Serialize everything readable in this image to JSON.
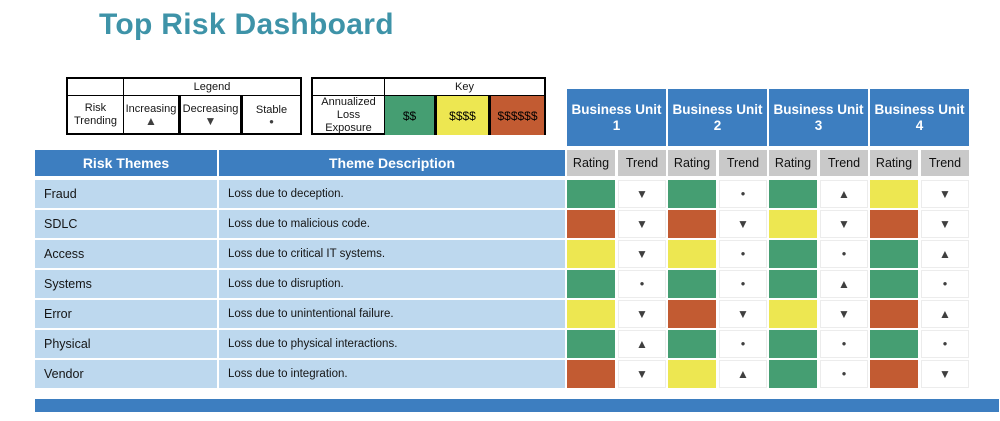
{
  "title": "Top Risk Dashboard",
  "colors": {
    "header_blue": "#3D7EC0",
    "row_blue": "#BDD8EE",
    "subheader_gray": "#C9C9C9",
    "green": "#459E72",
    "yellow": "#EDE751",
    "orange": "#C25B32",
    "title_teal": "#3E93A8",
    "glyph_gray": "#3F3F3F"
  },
  "legend": {
    "title": "Legend",
    "row_label": "Risk Trending",
    "items": [
      {
        "label": "Increasing",
        "glyph": "▲"
      },
      {
        "label": "Decreasing",
        "glyph": "▼"
      },
      {
        "label": "Stable",
        "glyph": "●"
      }
    ]
  },
  "key": {
    "title": "Key",
    "row_label": "Annualized Loss Exposure",
    "items": [
      {
        "label": "$$",
        "color": "green"
      },
      {
        "label": "$$$$",
        "color": "yellow"
      },
      {
        "label": "$$$$$$",
        "color": "orange"
      }
    ]
  },
  "business_units": [
    {
      "line1": "Business Unit",
      "line2": "1"
    },
    {
      "line1": "Business Unit",
      "line2": "2"
    },
    {
      "line1": "Business Unit",
      "line2": "3"
    },
    {
      "line1": "Business Unit",
      "line2": "4"
    }
  ],
  "subheaders": {
    "rating": "Rating",
    "trend": "Trend"
  },
  "table_headers": {
    "risk_themes": "Risk Themes",
    "theme_description": "Theme Description"
  },
  "glyphs": {
    "up": "▲",
    "down": "▼",
    "stable": "●"
  },
  "chart_data": {
    "type": "table",
    "title": "Top Risk Dashboard",
    "columns": [
      "Risk Themes",
      "Theme Description",
      "Business Unit 1 Rating",
      "Business Unit 1 Trend",
      "Business Unit 2 Rating",
      "Business Unit 2 Trend",
      "Business Unit 3 Rating",
      "Business Unit 3 Trend",
      "Business Unit 4 Rating",
      "Business Unit 4 Trend"
    ],
    "rating_legend": {
      "green": "$$",
      "yellow": "$$$$",
      "orange": "$$$$$$"
    },
    "trend_legend": {
      "up": "Increasing",
      "down": "Decreasing",
      "stable": "Stable"
    },
    "rows": [
      {
        "theme": "Fraud",
        "description": "Loss due to deception.",
        "units": [
          {
            "rating": "green",
            "trend": "down"
          },
          {
            "rating": "green",
            "trend": "stable"
          },
          {
            "rating": "green",
            "trend": "up"
          },
          {
            "rating": "yellow",
            "trend": "down"
          }
        ]
      },
      {
        "theme": "SDLC",
        "description": "Loss due to malicious code.",
        "units": [
          {
            "rating": "orange",
            "trend": "down"
          },
          {
            "rating": "orange",
            "trend": "down"
          },
          {
            "rating": "yellow",
            "trend": "down"
          },
          {
            "rating": "orange",
            "trend": "down"
          }
        ]
      },
      {
        "theme": "Access",
        "description": "Loss due to critical IT systems.",
        "units": [
          {
            "rating": "yellow",
            "trend": "down"
          },
          {
            "rating": "yellow",
            "trend": "stable"
          },
          {
            "rating": "green",
            "trend": "stable"
          },
          {
            "rating": "green",
            "trend": "up"
          }
        ]
      },
      {
        "theme": "Systems",
        "description": "Loss due to disruption.",
        "units": [
          {
            "rating": "green",
            "trend": "stable"
          },
          {
            "rating": "green",
            "trend": "stable"
          },
          {
            "rating": "green",
            "trend": "up"
          },
          {
            "rating": "green",
            "trend": "stable"
          }
        ]
      },
      {
        "theme": "Error",
        "description": "Loss due to unintentional failure.",
        "units": [
          {
            "rating": "yellow",
            "trend": "down"
          },
          {
            "rating": "orange",
            "trend": "down"
          },
          {
            "rating": "yellow",
            "trend": "down"
          },
          {
            "rating": "orange",
            "trend": "up"
          }
        ]
      },
      {
        "theme": "Physical",
        "description": "Loss due to physical interactions.",
        "units": [
          {
            "rating": "green",
            "trend": "up"
          },
          {
            "rating": "green",
            "trend": "stable"
          },
          {
            "rating": "green",
            "trend": "stable"
          },
          {
            "rating": "green",
            "trend": "stable"
          }
        ]
      },
      {
        "theme": "Vendor",
        "description": "Loss due to integration.",
        "units": [
          {
            "rating": "orange",
            "trend": "down"
          },
          {
            "rating": "yellow",
            "trend": "up"
          },
          {
            "rating": "green",
            "trend": "stable"
          },
          {
            "rating": "orange",
            "trend": "down"
          }
        ]
      }
    ]
  }
}
